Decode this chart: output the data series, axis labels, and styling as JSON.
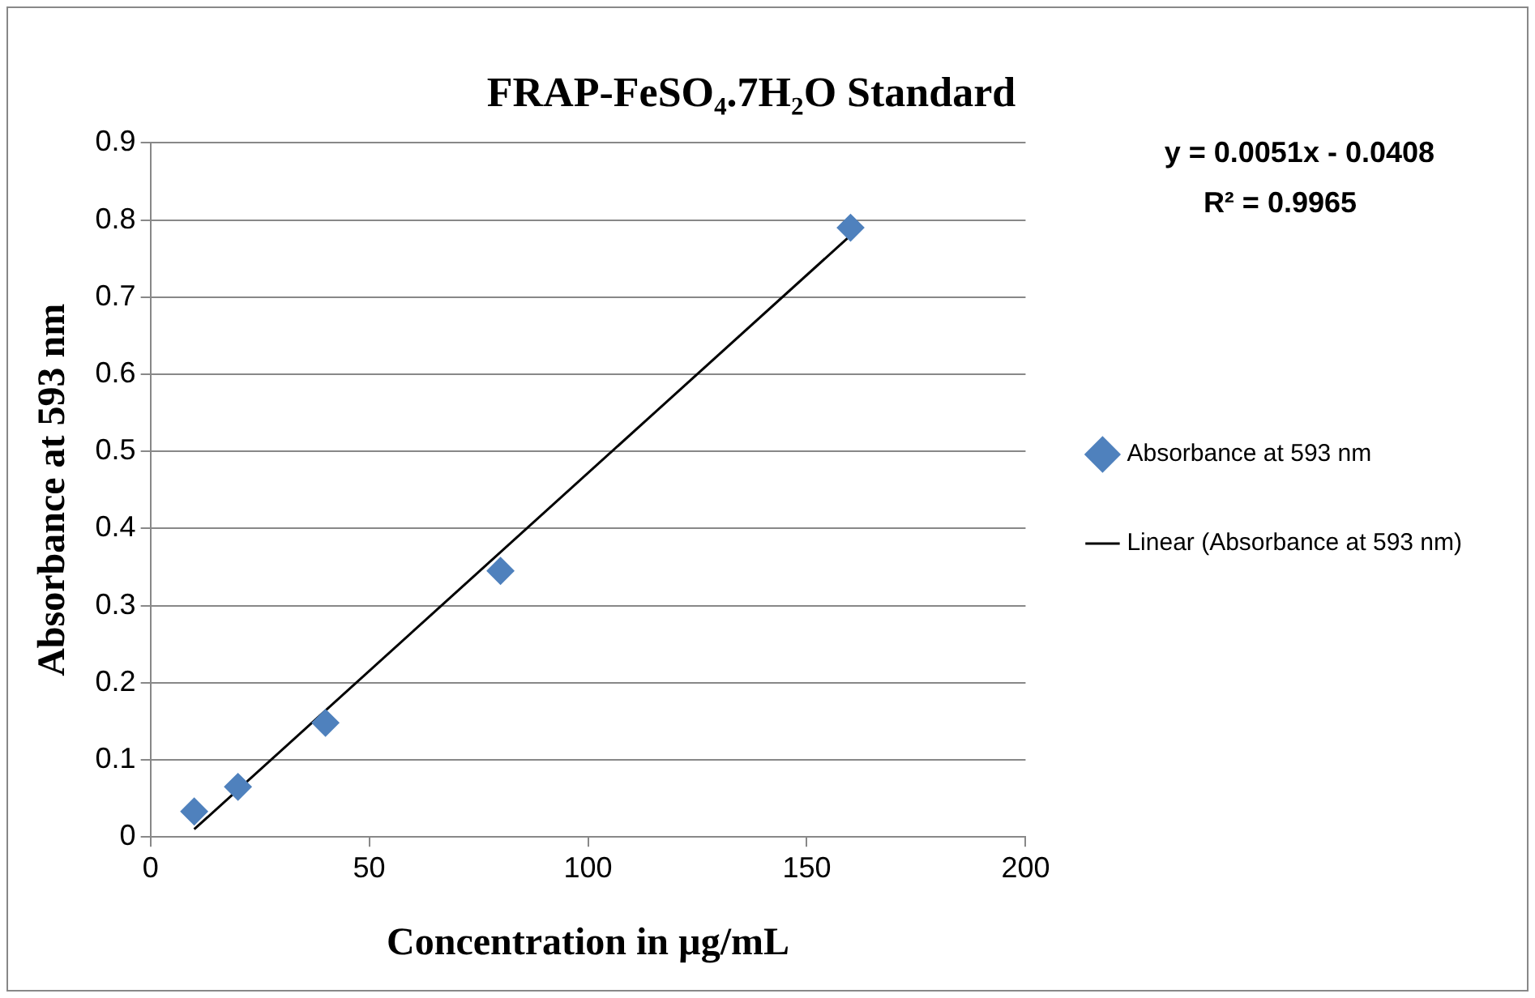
{
  "chart_data": {
    "type": "scatter",
    "title": "FRAP-FeSO₄.7H₂O Standard",
    "xlabel": "Concentration in µg/mL",
    "ylabel": "Absorbance at 593 nm",
    "series": [
      {
        "name": "Absorbance at 593 nm",
        "color": "#4f81bd",
        "x": [
          10,
          20,
          40,
          80,
          160
        ],
        "values": [
          0.033,
          0.065,
          0.148,
          0.345,
          0.79
        ],
        "marker": "diamond"
      },
      {
        "name": "Linear (Absorbance at 593 nm)",
        "type": "line",
        "color": "#000000",
        "x": [
          10,
          160
        ],
        "values": [
          0.01,
          0.78
        ],
        "marker": "none"
      }
    ],
    "xlim": [
      0,
      200
    ],
    "xticks": [
      0,
      50,
      100,
      150,
      200
    ],
    "ylim": [
      0,
      0.9
    ],
    "yticks": [
      0,
      0.1,
      0.2,
      0.3,
      0.4,
      0.5,
      0.6,
      0.7,
      0.8,
      0.9
    ],
    "grid": "y",
    "legend": "right",
    "annotations": [
      "y = 0.0051x - 0.0408",
      "R² = 0.9965"
    ]
  }
}
